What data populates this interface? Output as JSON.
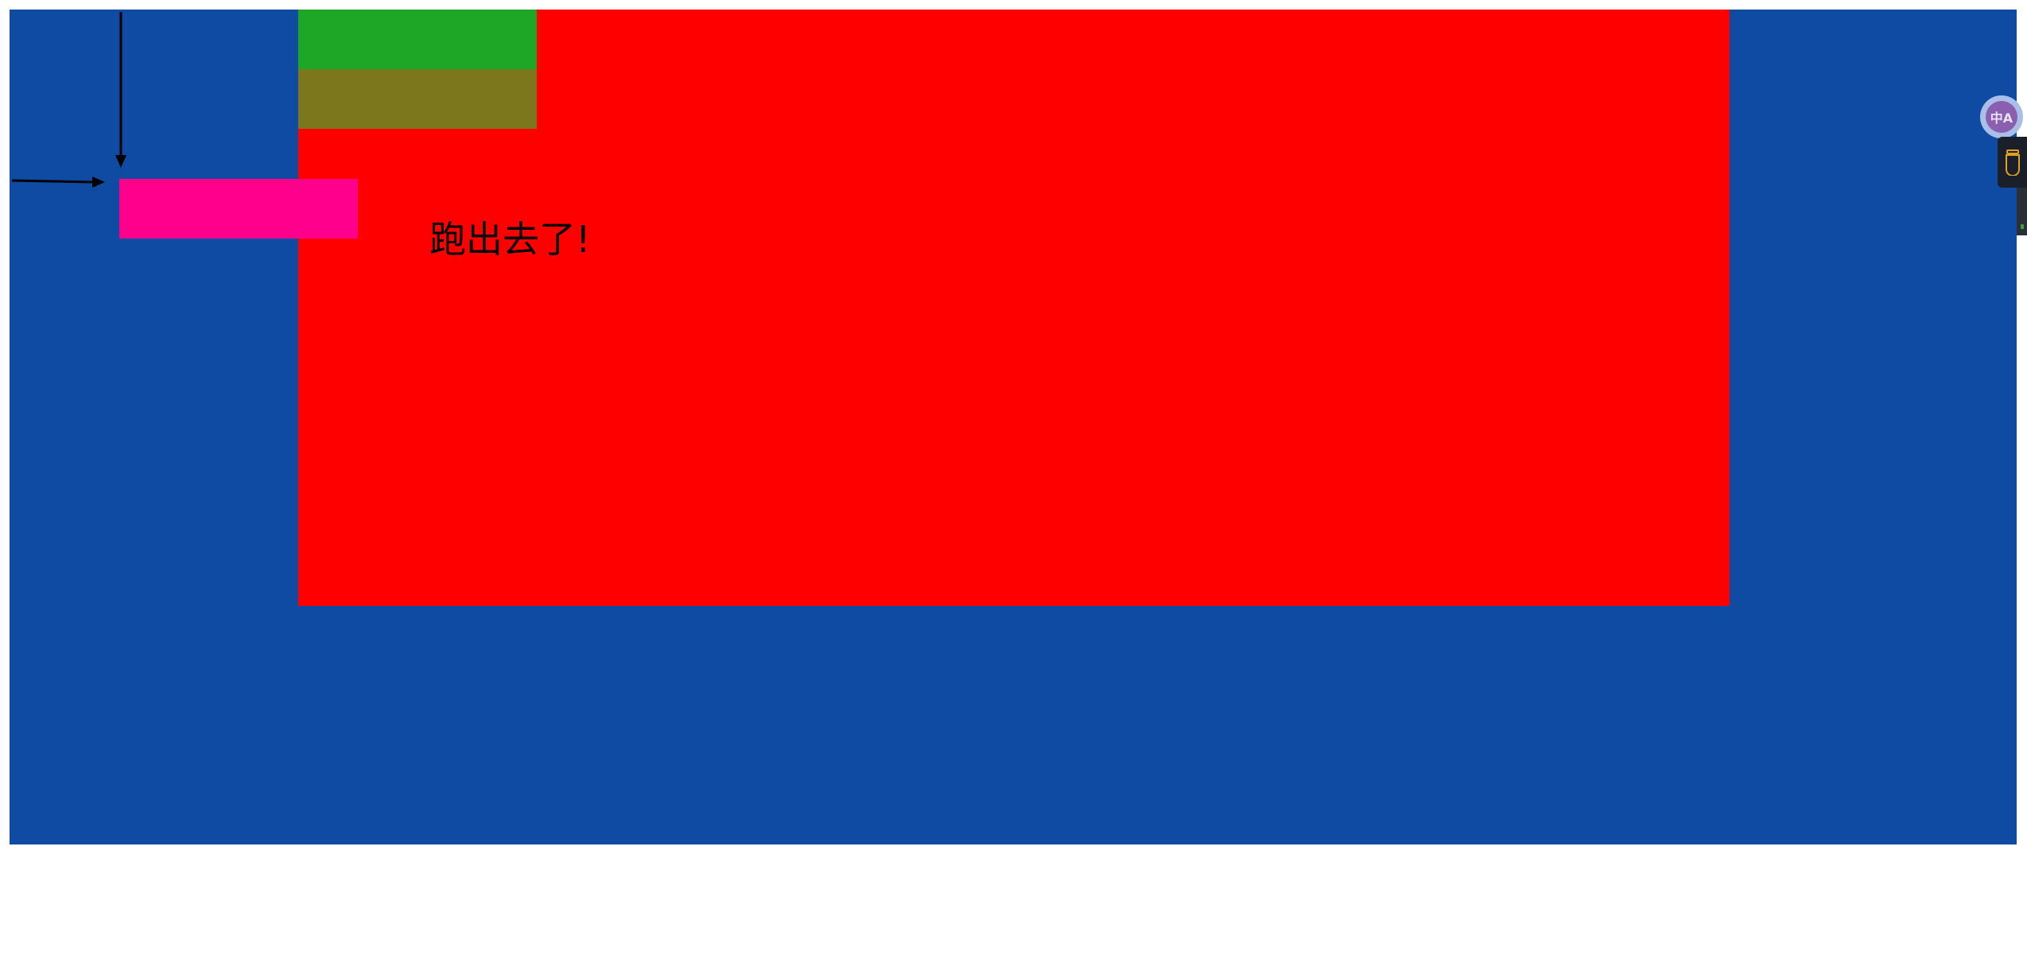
{
  "page": {
    "message": "跑出去了!"
  },
  "colors": {
    "container": "#0f4aa3",
    "red_box": "#ff0000",
    "green_box": "#1ea626",
    "olive_box": "#7c761c",
    "pink_box": "#ff008c",
    "background": "#ffffff"
  },
  "icons": {
    "translate": "translate-icon",
    "extension": "mug-icon",
    "arrows": [
      "arrow-down-icon",
      "arrow-right-icon"
    ]
  },
  "extension": {
    "translate_glyph": "中A"
  }
}
